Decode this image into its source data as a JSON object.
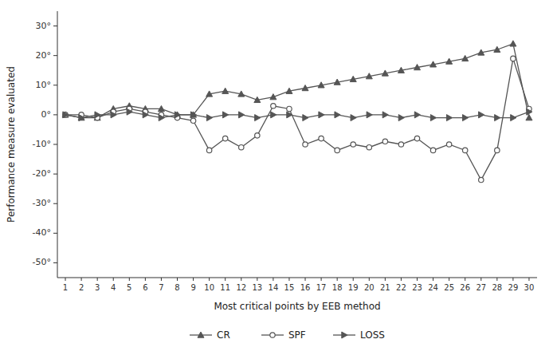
{
  "chart_data": {
    "type": "line",
    "xlabel": "Most critical points by EEB method",
    "ylabel": "Performance measure evaluated",
    "x": [
      1,
      2,
      3,
      4,
      5,
      6,
      7,
      8,
      9,
      10,
      11,
      12,
      13,
      14,
      15,
      16,
      17,
      18,
      19,
      20,
      21,
      22,
      23,
      24,
      25,
      26,
      27,
      28,
      29,
      30
    ],
    "series": [
      {
        "name": "CR",
        "color": "#555555",
        "marker": "triangle-up",
        "line_style": "solid",
        "values": [
          0,
          -1,
          -1,
          2,
          3,
          2,
          2,
          0,
          0,
          7,
          8,
          7,
          5,
          6,
          8,
          9,
          10,
          11,
          12,
          13,
          14,
          15,
          16,
          17,
          18,
          19,
          21,
          22,
          24,
          -1
        ]
      },
      {
        "name": "SPF",
        "color": "#555555",
        "marker": "circle-open",
        "line_style": "solid",
        "values": [
          0,
          0,
          -1,
          1,
          2,
          1,
          0,
          -1,
          -2,
          -12,
          -8,
          -11,
          -7,
          3,
          2,
          -10,
          -8,
          -12,
          -10,
          -11,
          -9,
          -10,
          -8,
          -12,
          -10,
          -12,
          -22,
          -12,
          19,
          2
        ]
      },
      {
        "name": "LOSS",
        "color": "#555555",
        "marker": "triangle-right",
        "line_style": "solid",
        "values": [
          0,
          -1,
          0,
          0,
          1,
          0,
          -1,
          0,
          0,
          -1,
          0,
          0,
          -1,
          0,
          0,
          -1,
          0,
          0,
          -1,
          0,
          0,
          -1,
          0,
          -1,
          -1,
          -1,
          0,
          -1,
          -1,
          1
        ]
      }
    ],
    "xlim": [
      0.5,
      30.5
    ],
    "xticks": [
      1,
      2,
      3,
      4,
      5,
      6,
      7,
      8,
      9,
      10,
      11,
      12,
      13,
      14,
      15,
      16,
      17,
      18,
      19,
      20,
      21,
      22,
      23,
      24,
      25,
      26,
      27,
      28,
      29,
      30
    ],
    "ylim": [
      -55,
      35
    ],
    "yticks": [
      {
        "value": -50,
        "label": "-50°"
      },
      {
        "value": -40,
        "label": "-40°"
      },
      {
        "value": -30,
        "label": "-30°"
      },
      {
        "value": -20,
        "label": "-20°"
      },
      {
        "value": -10,
        "label": "-10°"
      },
      {
        "value": 0,
        "label": "0°"
      },
      {
        "value": 10,
        "label": "10°"
      },
      {
        "value": 20,
        "label": "20°"
      },
      {
        "value": 30,
        "label": "30°"
      }
    ],
    "grid": false,
    "legend": "bottom"
  }
}
